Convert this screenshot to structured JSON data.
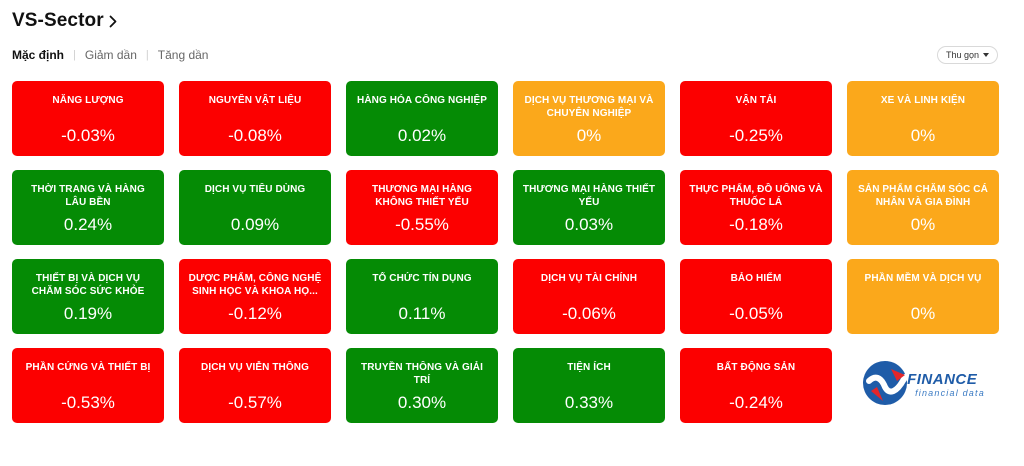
{
  "header": {
    "title": "VS-Sector"
  },
  "filters": [
    {
      "label": "Mặc định",
      "active": true
    },
    {
      "label": "Giảm dần",
      "active": false
    },
    {
      "label": "Tăng dần",
      "active": false
    }
  ],
  "collapse_label": "Thu gọn",
  "colors": {
    "down": "#fc0000",
    "up": "#058b05",
    "flat": "#fba81b"
  },
  "sectors": [
    {
      "name": "Năng lượng",
      "change": "-0.03%",
      "trend": "down"
    },
    {
      "name": "Nguyên vật liệu",
      "change": "-0.08%",
      "trend": "down"
    },
    {
      "name": "Hàng hóa công nghiệp",
      "change": "0.02%",
      "trend": "up"
    },
    {
      "name": "Dịch vụ thương mại và chuyên nghiệp",
      "change": "0%",
      "trend": "flat"
    },
    {
      "name": "Vận tải",
      "change": "-0.25%",
      "trend": "down"
    },
    {
      "name": "Xe và linh kiện",
      "change": "0%",
      "trend": "flat"
    },
    {
      "name": "Thời trang và hàng lâu bền",
      "change": "0.24%",
      "trend": "up"
    },
    {
      "name": "Dịch vụ tiêu dùng",
      "change": "0.09%",
      "trend": "up"
    },
    {
      "name": "Thương mại hàng không thiết yếu",
      "change": "-0.55%",
      "trend": "down"
    },
    {
      "name": "Thương mại hàng thiết yếu",
      "change": "0.03%",
      "trend": "up"
    },
    {
      "name": "Thực phẩm, đồ uống và thuốc lá",
      "change": "-0.18%",
      "trend": "down"
    },
    {
      "name": "Sản phẩm chăm sóc cá nhân và gia đình",
      "change": "0%",
      "trend": "flat"
    },
    {
      "name": "Thiết bị và dịch vụ chăm sóc sức khỏe",
      "change": "0.19%",
      "trend": "up"
    },
    {
      "name": "Dược phẩm, công nghệ sinh học và khoa họ...",
      "change": "-0.12%",
      "trend": "down"
    },
    {
      "name": "Tổ chức tín dụng",
      "change": "0.11%",
      "trend": "up"
    },
    {
      "name": "Dịch vụ tài chính",
      "change": "-0.06%",
      "trend": "down"
    },
    {
      "name": "Bảo hiểm",
      "change": "-0.05%",
      "trend": "down"
    },
    {
      "name": "Phần mềm và dịch vụ",
      "change": "0%",
      "trend": "flat"
    },
    {
      "name": "Phần cứng và thiết bị",
      "change": "-0.53%",
      "trend": "down"
    },
    {
      "name": "Dịch vụ viễn thông",
      "change": "-0.57%",
      "trend": "down"
    },
    {
      "name": "Truyền thông và giải trí",
      "change": "0.30%",
      "trend": "up"
    },
    {
      "name": "Tiện ích",
      "change": "0.33%",
      "trend": "up"
    },
    {
      "name": "Bất động sản",
      "change": "-0.24%",
      "trend": "down"
    }
  ],
  "logo": {
    "main": "FINANCE",
    "sub": "financial data",
    "icon": "vfinance-logo-icon"
  }
}
